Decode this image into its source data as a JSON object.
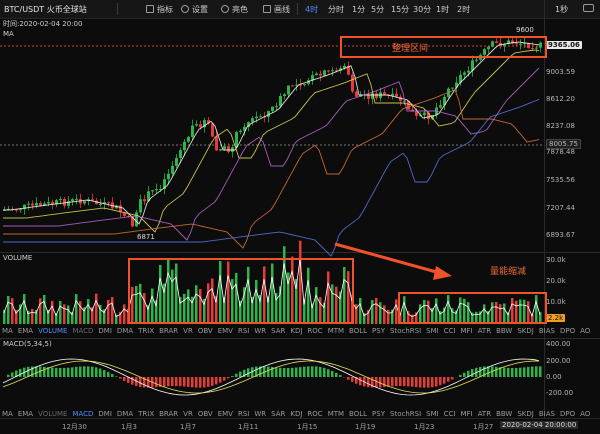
{
  "toolbar": {
    "title": "BTC/USDT 火币全球站",
    "indicators": "指标",
    "settings": "设置",
    "theme": "亮色",
    "draw": "画线",
    "intervals": [
      "4时",
      "分时",
      "1分",
      "5分",
      "15分",
      "30分",
      "1时",
      "2时"
    ],
    "active_interval": "4时",
    "range": "1秒"
  },
  "main": {
    "time_label": "时间:2020-02-04 20:00",
    "ma_label": "MA",
    "price_tag": "9365.06",
    "high_label": "9600",
    "low_label": "6871",
    "dash_level": "8005.75",
    "price_axis": [
      "9003.59",
      "8612.20",
      "8237.08",
      "7878.48",
      "7535.56",
      "7207.44",
      "6893.67"
    ]
  },
  "volume": {
    "label": "VOLUME",
    "axis": [
      "30.0k",
      "20.0k",
      "10.0k"
    ],
    "tag": "2.2k",
    "annotation": "量能缩减"
  },
  "indicator_row": [
    "MA",
    "EMA",
    "VOLUME",
    "MACD",
    "DMI",
    "DMA",
    "TRIX",
    "BRAR",
    "VR",
    "OBV",
    "EMV",
    "RSI",
    "WR",
    "SAR",
    "KDJ",
    "ROC",
    "MTM",
    "BOLL",
    "PSY",
    "StochRSI",
    "SMI",
    "CCI",
    "MFI",
    "ATR",
    "BBW",
    "SKDJ",
    "BIAS",
    "DPO",
    "AO"
  ],
  "macd": {
    "label": "MACD(5,34,5)",
    "axis": [
      "400.00",
      "200.00",
      "0.00",
      "-200.00"
    ]
  },
  "annotations": {
    "consolidation": "整理区间"
  },
  "dates": [
    "12月30",
    "1月3",
    "1月7",
    "1月11",
    "1月15",
    "1月19",
    "1月23",
    "1月27"
  ],
  "crosshair_time": "2020-02-04 20:00:00",
  "colors": {
    "up": "#2fb34a",
    "down": "#e53b3b",
    "accent": "#f0522a",
    "active": "#4f8dff"
  }
}
